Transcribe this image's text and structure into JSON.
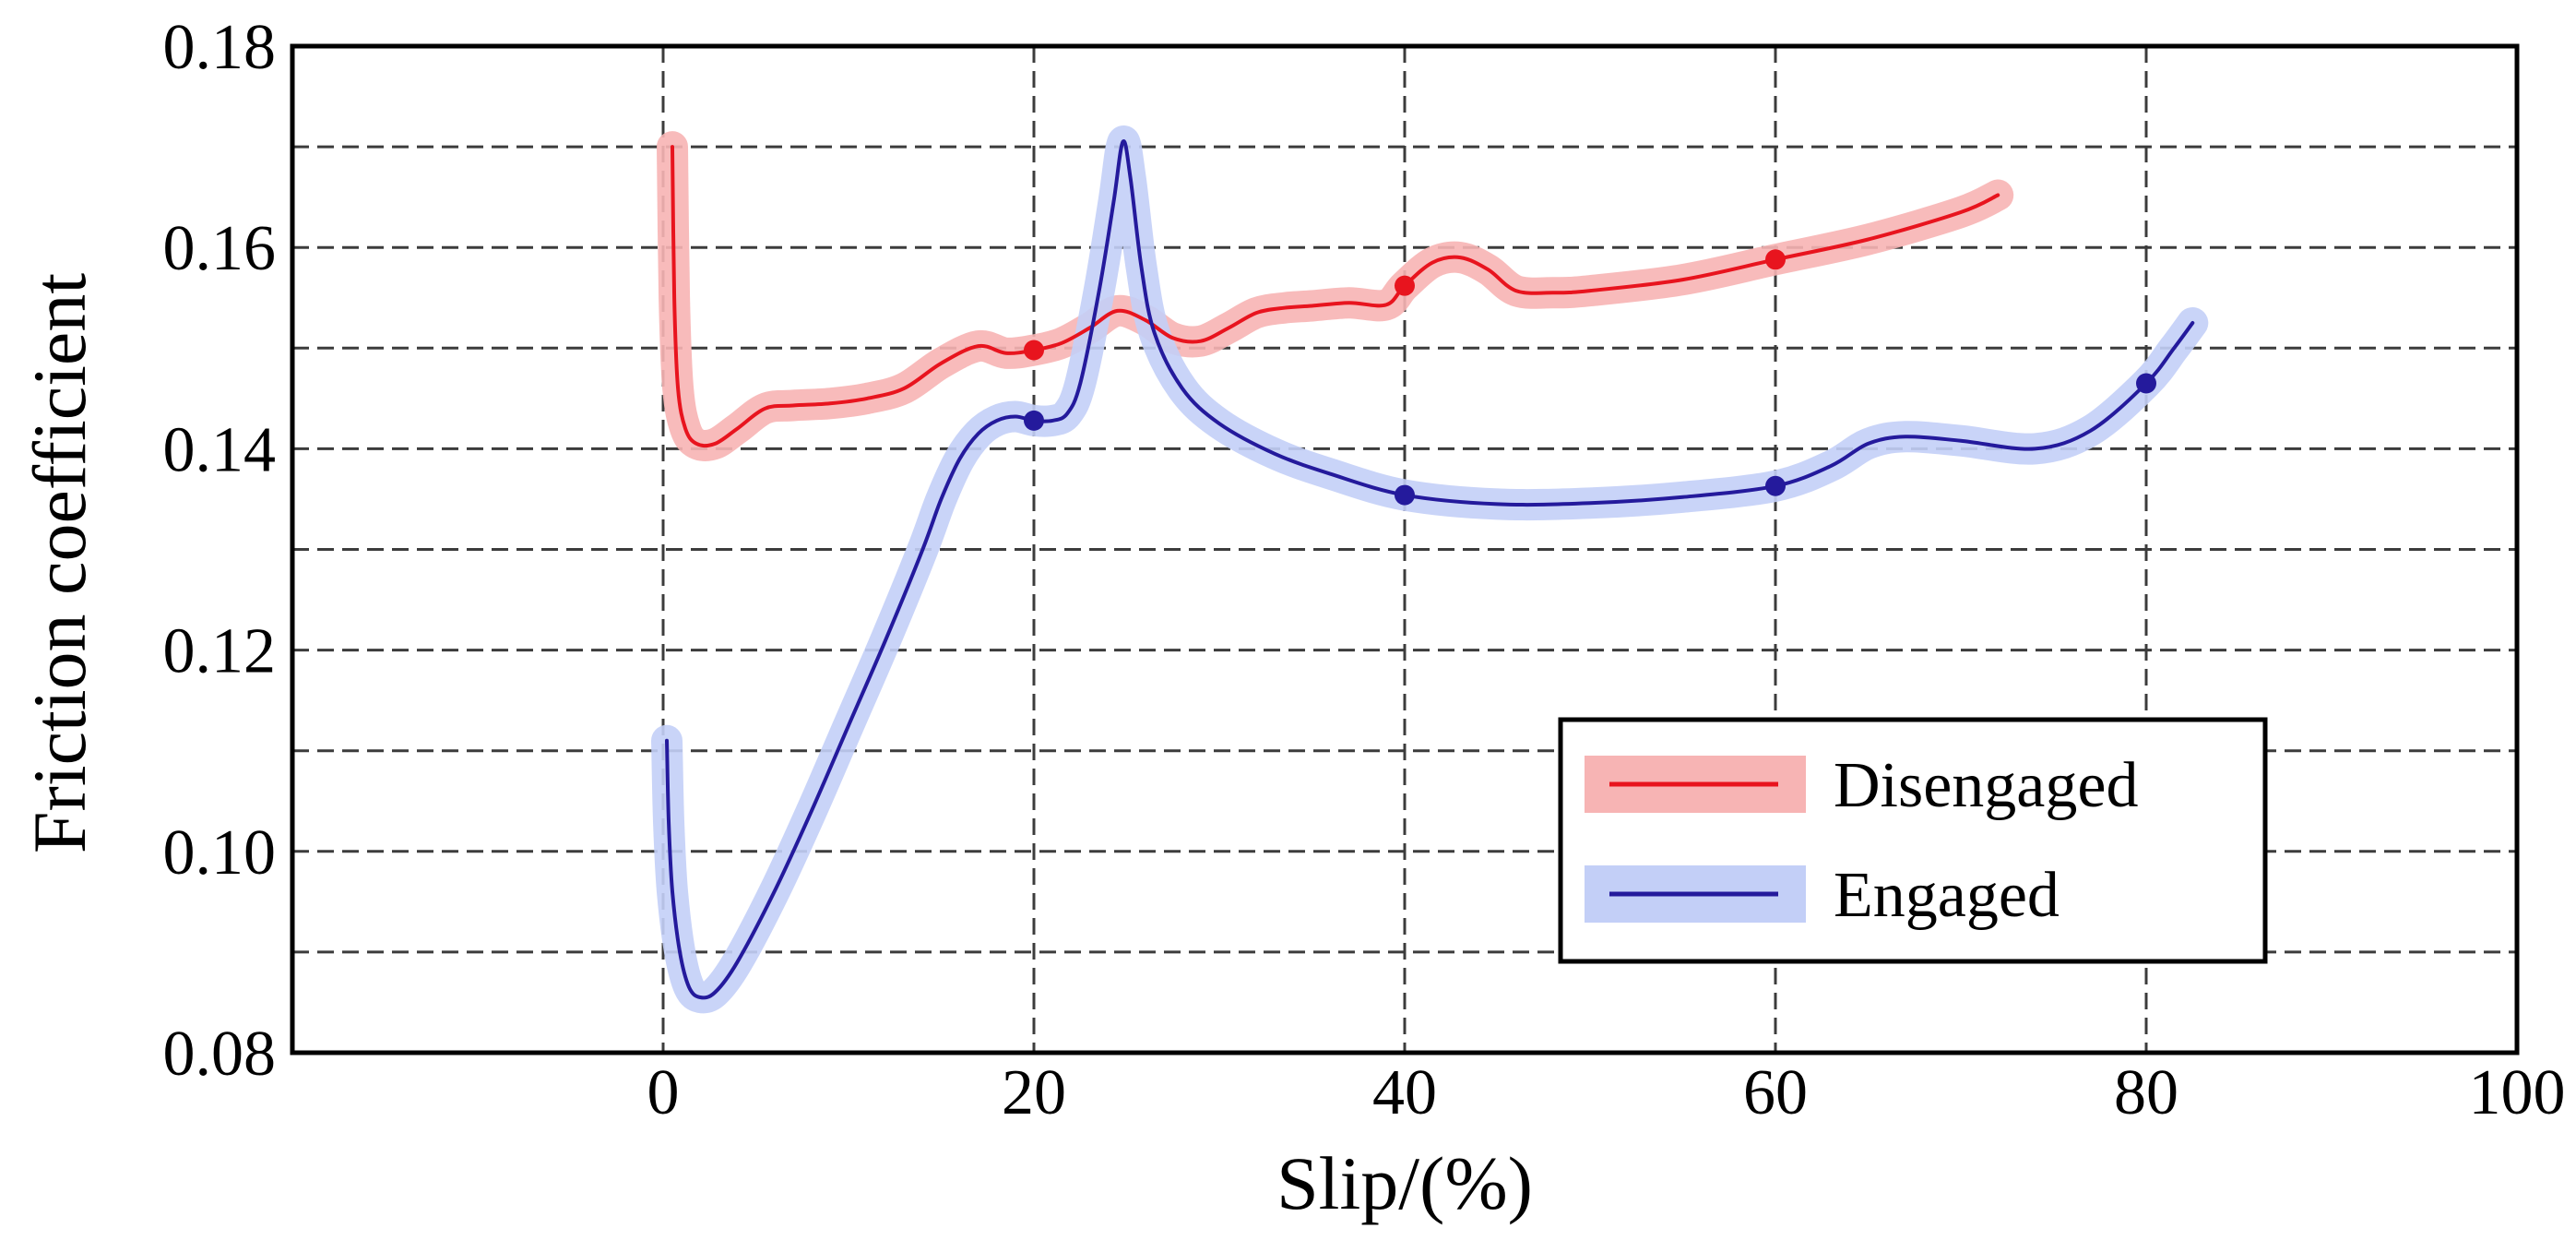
{
  "chart_data": {
    "type": "line",
    "xlabel": "Slip/(%)",
    "ylabel": "Friction coefficient",
    "xlim": [
      -20,
      100
    ],
    "ylim": [
      0.08,
      0.18
    ],
    "x_ticks": [
      0,
      20,
      40,
      60,
      80,
      100
    ],
    "x_tick_labels": [
      "0",
      "20",
      "40",
      "60",
      "80",
      "100"
    ],
    "y_ticks": [
      0.08,
      0.1,
      0.12,
      0.14,
      0.16,
      0.18
    ],
    "y_tick_labels": [
      "0.08",
      "0.10",
      "0.12",
      "0.14",
      "0.16",
      "0.18"
    ],
    "grid": true,
    "grid_style": "dashed",
    "x_grid_values": [
      0,
      20,
      40,
      60,
      80
    ],
    "y_grid_values": [
      0.09,
      0.1,
      0.11,
      0.12,
      0.13,
      0.14,
      0.15,
      0.16,
      0.17
    ],
    "legend_position": "lower-right",
    "series": [
      {
        "name": "Disengaged",
        "color": "#e8141e",
        "halo_color": "#f7b4b4",
        "x": [
          0.5,
          0.6,
          0.8,
          1.2,
          1.8,
          2.8,
          4,
          5.5,
          7,
          9,
          11,
          13,
          15,
          17,
          18.5,
          20,
          21.5,
          23,
          24.5,
          26,
          27.5,
          29,
          30.5,
          32,
          33.5,
          35,
          37,
          39,
          40,
          41.5,
          43,
          44.5,
          46,
          48,
          50,
          55,
          60,
          65,
          70,
          72
        ],
        "y": [
          0.17,
          0.155,
          0.146,
          0.142,
          0.1405,
          0.1405,
          0.142,
          0.144,
          0.1443,
          0.1445,
          0.145,
          0.146,
          0.1485,
          0.1502,
          0.1495,
          0.1498,
          0.1505,
          0.152,
          0.1537,
          0.1528,
          0.151,
          0.1507,
          0.152,
          0.1535,
          0.154,
          0.1542,
          0.1545,
          0.1543,
          0.1562,
          0.1585,
          0.159,
          0.1578,
          0.1557,
          0.1555,
          0.1557,
          0.1568,
          0.1588,
          0.1608,
          0.1635,
          0.1652
        ],
        "markers_x": [
          20,
          40,
          60
        ],
        "markers_y": [
          0.1498,
          0.1562,
          0.1588
        ]
      },
      {
        "name": "Engaged",
        "color": "#241a9c",
        "halo_color": "#c3cff7",
        "x": [
          0.2,
          0.3,
          0.5,
          0.9,
          1.4,
          2,
          2.8,
          4,
          6,
          8,
          10,
          12,
          14,
          15,
          16,
          17,
          18,
          19,
          20,
          21,
          21.8,
          22.5,
          23.5,
          24.3,
          24.8,
          25.2,
          25.8,
          26.5,
          28,
          30,
          33,
          36,
          40,
          45,
          50,
          55,
          60,
          63,
          65,
          67,
          70,
          74,
          77,
          80,
          81.5,
          82.5
        ],
        "y": [
          0.111,
          0.103,
          0.096,
          0.09,
          0.0865,
          0.0855,
          0.086,
          0.089,
          0.096,
          0.104,
          0.1125,
          0.121,
          0.13,
          0.135,
          0.139,
          0.1415,
          0.1428,
          0.1432,
          0.1428,
          0.1428,
          0.1435,
          0.1465,
          0.1555,
          0.1645,
          0.1705,
          0.167,
          0.158,
          0.1515,
          0.146,
          0.1425,
          0.1395,
          0.1375,
          0.1354,
          0.1345,
          0.1346,
          0.1352,
          0.1363,
          0.1383,
          0.1405,
          0.1412,
          0.1408,
          0.14,
          0.1418,
          0.1465,
          0.15,
          0.1525
        ],
        "markers_x": [
          20,
          40,
          60,
          80
        ],
        "markers_y": [
          0.1428,
          0.1354,
          0.1363,
          0.1465
        ]
      }
    ]
  }
}
